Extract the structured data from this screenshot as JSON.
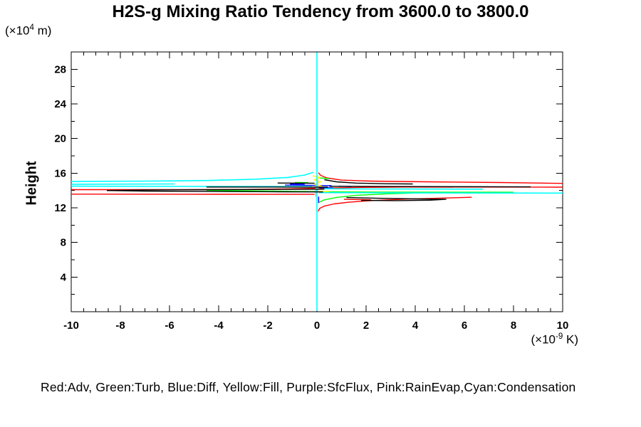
{
  "title": "H2S-g Mixing Ratio Tendency from 3600.0 to 3800.0",
  "axes": {
    "y_label": "Height",
    "y_unit": {
      "prefix": "(×10",
      "exponent": "4",
      "suffix": " m)"
    },
    "x_unit": {
      "prefix": "(×10",
      "exponent": "-9",
      "suffix": " K)"
    }
  },
  "legend": {
    "text": "Red:Adv, Green:Turb, Blue:Diff, Yellow:Fill, Purple:SfcFlux, Pink:RainEvap,Cyan:Condensation"
  },
  "colors": {
    "red": "#ff0000",
    "green": "#00ff00",
    "blue": "#0000ff",
    "yellow": "#ffff00",
    "purple": "#dda0dd",
    "pink": "#ffb6c1",
    "cyan": "#00ffff",
    "black": "#000000",
    "axis": "#000000",
    "background": "#ffffff"
  },
  "chart_data": {
    "type": "line",
    "title": "H2S-g Mixing Ratio Tendency from 3600.0 to 3800.0",
    "xlabel": "(×10⁻⁹ K)",
    "ylabel": "Height (×10⁴ m)",
    "xlim": [
      -10,
      10
    ],
    "ylim": [
      0,
      30
    ],
    "x_major_ticks": [
      -10,
      -8,
      -6,
      -4,
      -2,
      0,
      2,
      4,
      6,
      8,
      10
    ],
    "x_minor_step": 0.5,
    "y_major_ticks": [
      4,
      8,
      12,
      16,
      20,
      24,
      28
    ],
    "y_minor_step": 2,
    "grid": false,
    "legend_position": "bottom-text-line",
    "series": [
      {
        "name": "Adv",
        "color": "#ff0000",
        "width": 1.4,
        "lines": [
          [
            [
              0.06,
              16.05
            ],
            [
              0.15,
              15.75
            ],
            [
              0.4,
              15.45
            ],
            [
              1.0,
              15.2
            ],
            [
              2.2,
              15.08
            ],
            [
              4.5,
              15.0
            ],
            [
              7.5,
              14.92
            ],
            [
              10,
              14.82
            ]
          ],
          [
            [
              -10,
              14.1
            ],
            [
              -6,
              14.1
            ],
            [
              -3,
              14.12
            ],
            [
              -1.2,
              14.18
            ],
            [
              0.2,
              14.28
            ],
            [
              1.8,
              14.36
            ],
            [
              3.5,
              14.4
            ],
            [
              10,
              14.38
            ]
          ],
          [
            [
              -10,
              13.58
            ],
            [
              -4,
              13.56
            ],
            [
              -0.1,
              13.55
            ]
          ],
          [
            [
              0.05,
              11.6
            ],
            [
              0.12,
              11.95
            ],
            [
              0.3,
              12.2
            ],
            [
              0.7,
              12.45
            ],
            [
              1.3,
              12.65
            ],
            [
              2.3,
              12.85
            ],
            [
              3.6,
              13.0
            ],
            [
              5.0,
              13.12
            ],
            [
              6.3,
              13.22
            ]
          ],
          [
            [
              1.1,
              12.98
            ],
            [
              2.2,
              12.93
            ]
          ]
        ]
      },
      {
        "name": "Turb",
        "color": "#00ff00",
        "width": 1.4,
        "lines": [
          [
            [
              -4.5,
              14.02
            ],
            [
              -2.5,
              13.96
            ],
            [
              -1.0,
              13.9
            ],
            [
              0.2,
              13.87
            ]
          ],
          [
            [
              0.25,
              13.84
            ],
            [
              2.5,
              13.82
            ],
            [
              5.5,
              13.8
            ],
            [
              8.0,
              13.8
            ]
          ],
          [
            [
              0.06,
              12.6
            ],
            [
              0.3,
              12.92
            ],
            [
              0.8,
              13.2
            ],
            [
              1.6,
              13.45
            ],
            [
              2.9,
              13.62
            ],
            [
              4.2,
              13.72
            ]
          ],
          [
            [
              0.1,
              15.45
            ],
            [
              0.5,
              15.36
            ]
          ],
          [
            [
              -0.9,
              14.92
            ],
            [
              -0.35,
              14.9
            ]
          ]
        ]
      },
      {
        "name": "Diff",
        "color": "#0000ff",
        "width": 1.4,
        "lines": [
          [
            [
              -1.3,
              14.62
            ],
            [
              -0.1,
              14.6
            ],
            [
              0.6,
              14.56
            ]
          ],
          [
            [
              0.05,
              14.32
            ],
            [
              0.65,
              14.3
            ]
          ],
          [
            [
              0.07,
              13.3
            ],
            [
              0.07,
              12.55
            ]
          ],
          [
            [
              0.9,
              14.5
            ],
            [
              1.4,
              14.45
            ]
          ],
          [
            [
              -1.1,
              14.74
            ],
            [
              -0.5,
              14.72
            ]
          ]
        ]
      },
      {
        "name": "Fill",
        "color": "#ffff00",
        "width": 1.4,
        "lines": [
          [
            [
              -0.18,
              15.7
            ],
            [
              0.12,
              15.5
            ],
            [
              -0.12,
              15.22
            ],
            [
              0.16,
              15.0
            ],
            [
              -0.1,
              14.72
            ],
            [
              0.2,
              14.5
            ],
            [
              -0.05,
              14.3
            ],
            [
              0.18,
              14.12
            ]
          ],
          [
            [
              0.1,
              13.9
            ],
            [
              0.5,
              13.88
            ]
          ]
        ]
      },
      {
        "name": "SfcFlux",
        "color": "#dda0dd",
        "width": 1.4,
        "lines": [
          [
            [
              -0.05,
              14.85
            ],
            [
              -0.05,
              13.3
            ]
          ]
        ]
      },
      {
        "name": "RainEvap",
        "color": "#ffb6c1",
        "width": 1.4,
        "lines": [
          [
            [
              0.04,
              15.3
            ],
            [
              0.04,
              13.85
            ]
          ]
        ]
      },
      {
        "name": "Condensation",
        "color": "#00ffff",
        "width": 1.6,
        "lines": [
          [
            [
              0,
              29.95
            ],
            [
              0,
              0.1
            ]
          ],
          [
            [
              -10,
              15.05
            ],
            [
              -7,
              15.08
            ],
            [
              -4.5,
              15.15
            ],
            [
              -2.5,
              15.3
            ],
            [
              -1.2,
              15.5
            ],
            [
              -0.5,
              15.78
            ],
            [
              -0.15,
              16.1
            ]
          ],
          [
            [
              -10,
              14.72
            ],
            [
              -5.8,
              14.75
            ]
          ],
          [
            [
              -10,
              14.5
            ],
            [
              -0.2,
              14.45
            ]
          ],
          [
            [
              0.3,
              14.2
            ],
            [
              2.0,
              14.18
            ],
            [
              6.75,
              14.15
            ]
          ],
          [
            [
              0.08,
              13.75
            ],
            [
              4,
              13.72
            ],
            [
              10,
              13.7
            ]
          ]
        ]
      },
      {
        "name": "black",
        "color": "#000000",
        "width": 1.4,
        "lines": [
          [
            [
              -4.5,
              14.4
            ],
            [
              -2,
              14.4
            ],
            [
              0.45,
              14.38
            ]
          ],
          [
            [
              -8.55,
              14.0
            ],
            [
              -7,
              14.06
            ],
            [
              -4,
              14.1
            ],
            [
              -1.5,
              14.13
            ],
            [
              0.3,
              14.15
            ]
          ],
          [
            [
              -8.55,
              14.0
            ],
            [
              -7,
              13.93
            ],
            [
              -4,
              13.88
            ],
            [
              -1.5,
              13.85
            ],
            [
              0.25,
              13.83
            ]
          ],
          [
            [
              0.3,
              15.25
            ],
            [
              0.8,
              15.0
            ],
            [
              1.6,
              14.85
            ],
            [
              2.8,
              14.78
            ],
            [
              3.9,
              14.75
            ]
          ],
          [
            [
              0.5,
              14.48
            ],
            [
              3,
              14.46
            ],
            [
              6,
              14.44
            ],
            [
              8.7,
              14.42
            ]
          ],
          [
            [
              1.2,
              13.18
            ],
            [
              2.5,
              13.1
            ],
            [
              4.0,
              13.03
            ],
            [
              5.25,
              12.98
            ],
            [
              4.6,
              12.88
            ],
            [
              3.2,
              12.83
            ],
            [
              1.8,
              12.86
            ]
          ],
          [
            [
              -1.6,
              14.86
            ],
            [
              -0.1,
              14.84
            ]
          ]
        ]
      }
    ]
  }
}
